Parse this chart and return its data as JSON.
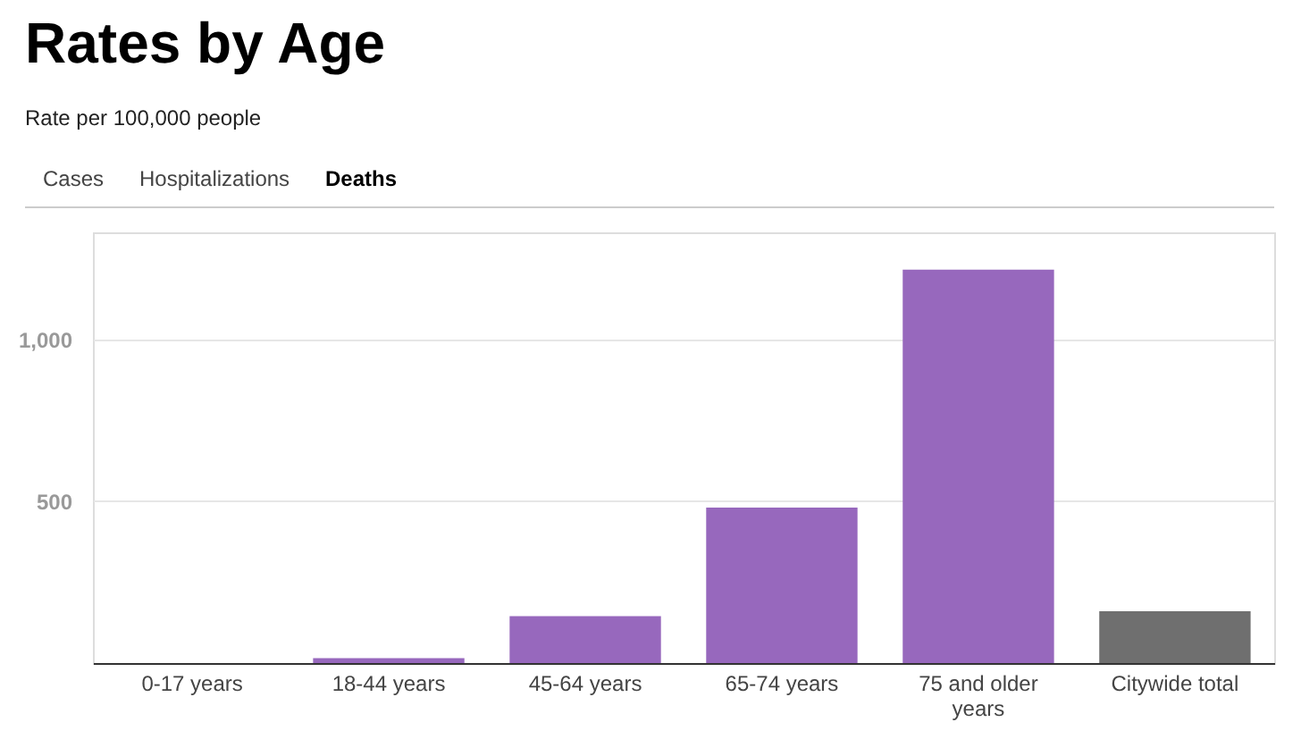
{
  "chart_data": {
    "type": "bar",
    "title": "Rates by Age",
    "subtitle": "Rate per 100,000 people",
    "annotations": [
      "Cases",
      "Hospitalizations",
      "Deaths"
    ],
    "categories": [
      "0-17 years",
      "18-44 years",
      "45-64 years",
      "65-74 years",
      "75 and older years",
      "Citywide total"
    ],
    "values": [
      null,
      15,
      145,
      480,
      1215,
      160
    ],
    "colors": [
      "#9768bd",
      "#9768bd",
      "#9768bd",
      "#9768bd",
      "#9768bd",
      "#6f6f6f"
    ],
    "ylim": [
      0,
      1330
    ],
    "yticks": [
      {
        "value": 0,
        "label": null
      },
      500,
      {
        "value": 1000,
        "label": "1,000"
      }
    ],
    "grid": "y"
  }
}
